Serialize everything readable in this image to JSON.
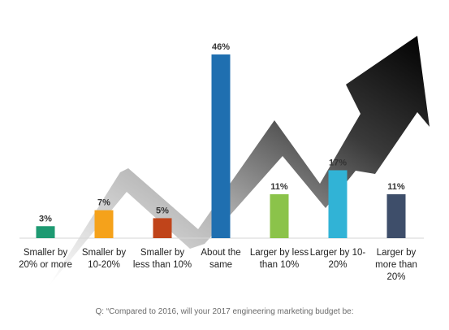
{
  "chart_data": {
    "type": "bar",
    "categories": [
      "Smaller by 20% or more",
      "Smaller by 10-20%",
      "Smaller by less than 10%",
      "About the same",
      "Larger by less than 10%",
      "Larger by 10-20%",
      "Larger by more than 20%"
    ],
    "category_lines": [
      [
        "Smaller by",
        "20% or more"
      ],
      [
        "Smaller by",
        "10-20%"
      ],
      [
        "Smaller by",
        "less than 10%"
      ],
      [
        "About the",
        "same"
      ],
      [
        "Larger by less",
        "than 10%"
      ],
      [
        "Larger by 10-",
        "20%"
      ],
      [
        "Larger by",
        "more than",
        "20%"
      ]
    ],
    "values": [
      3,
      7,
      5,
      46,
      11,
      17,
      11
    ],
    "data_labels": [
      "3%",
      "7%",
      "5%",
      "46%",
      "11%",
      "17%",
      "11%"
    ],
    "colors": [
      "#1e9a72",
      "#f5a21b",
      "#c0441a",
      "#1f6fb0",
      "#8bc34a",
      "#31b3d6",
      "#3e4e6a"
    ],
    "ylim": [
      0,
      46
    ],
    "grid": false,
    "legend": "none",
    "decoration": "curved-arrow-trending-up"
  },
  "footnote": "Q: “Compared to 2016, will your 2017 engineering marketing budget be:"
}
